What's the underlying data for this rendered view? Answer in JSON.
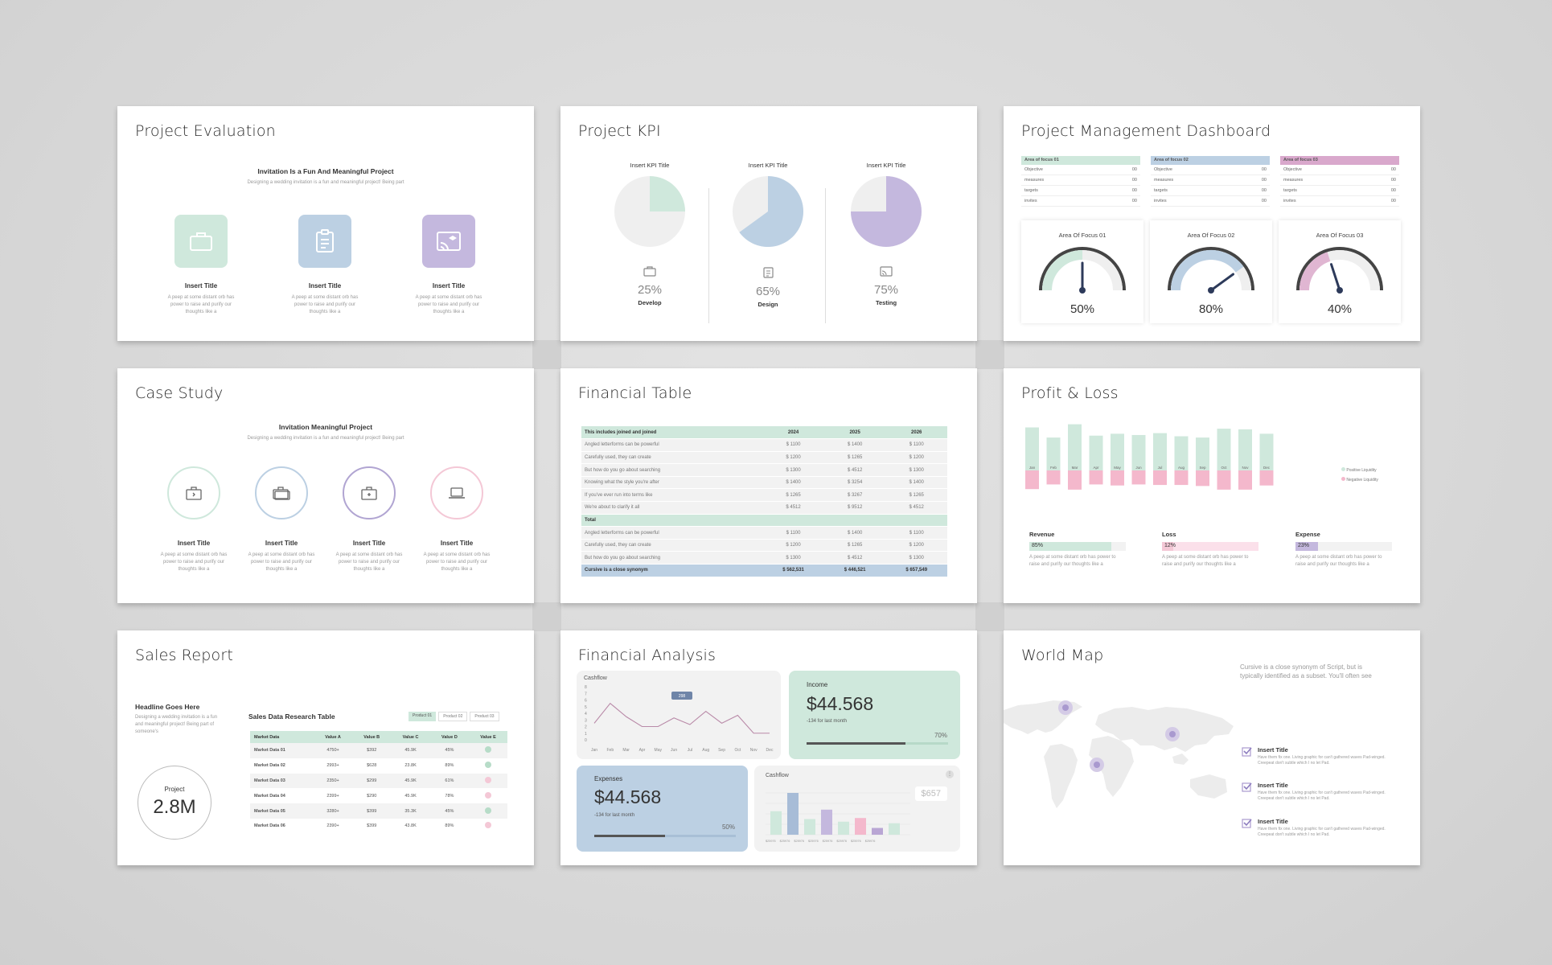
{
  "colors": {
    "green": "#cfe8dc",
    "blue": "#bcd0e3",
    "purple": "#c4b8de",
    "pink": "#f4b8cc",
    "gray": "#efefef"
  },
  "s1": {
    "title": "Project Evaluation",
    "headline": "Invitation Is a Fun And Meaningful Project",
    "sub": "Designing a wedding invitation is a fun and meaningful project! Being part",
    "items": [
      {
        "label": "Insert Title",
        "desc": "A peep at some distant orb has power to raise and purify our thoughts like a",
        "icon": "briefcase-icon"
      },
      {
        "label": "Insert Title",
        "desc": "A peep at some distant orb has power to raise and purify our thoughts like a",
        "icon": "clipboard-icon"
      },
      {
        "label": "Insert Title",
        "desc": "A peep at some distant orb has power to raise and purify our thoughts like a",
        "icon": "cast-icon"
      }
    ]
  },
  "s2": {
    "title": "Project KPI",
    "kpis": [
      {
        "title": "Insert KPI Title",
        "value": "25%",
        "label": "Develop",
        "pct": 25
      },
      {
        "title": "Insert KPI Title",
        "value": "65%",
        "label": "Design",
        "pct": 65
      },
      {
        "title": "Insert KPI Title",
        "value": "75%",
        "label": "Testing",
        "pct": 75
      }
    ]
  },
  "s3": {
    "title": "Project Management Dashboard",
    "tables": [
      {
        "head": "Area of focus 01",
        "rows": [
          [
            "Objective",
            "00"
          ],
          [
            "measures",
            "00"
          ],
          [
            "targets",
            "00"
          ],
          [
            "invites",
            "00"
          ]
        ]
      },
      {
        "head": "Area of focus 02",
        "rows": [
          [
            "Objective",
            "00"
          ],
          [
            "measures",
            "00"
          ],
          [
            "targets",
            "00"
          ],
          [
            "invites",
            "00"
          ]
        ]
      },
      {
        "head": "Area of focus 03",
        "rows": [
          [
            "Objective",
            "00"
          ],
          [
            "measures",
            "00"
          ],
          [
            "targets",
            "00"
          ],
          [
            "invites",
            "00"
          ]
        ]
      }
    ],
    "gauges": [
      {
        "label": "Area Of Focus 01",
        "value": "50%",
        "pct": 50
      },
      {
        "label": "Area Of Focus 02",
        "value": "80%",
        "pct": 80
      },
      {
        "label": "Area Of Focus 03",
        "value": "40%",
        "pct": 40
      }
    ]
  },
  "s4": {
    "title": "Case Study",
    "headline": "Invitation Meaningful Project",
    "sub": "Designing a wedding invitation is a fun and meaningful project! Being part",
    "items": [
      {
        "label": "Insert Title",
        "desc": "A peep at some distant orb has power to raise and purify our thoughts like a"
      },
      {
        "label": "Insert Title",
        "desc": "A peep at some distant orb has power to raise and purify our thoughts like a"
      },
      {
        "label": "Insert Title",
        "desc": "A peep at some distant orb has power to raise and purify our thoughts like a"
      },
      {
        "label": "Insert Title",
        "desc": "A peep at some distant orb has power to raise and purify our thoughts like a"
      }
    ]
  },
  "s5": {
    "title": "Financial Table",
    "header": [
      "This includes joined and joined",
      "2024",
      "2025",
      "2026"
    ],
    "rows1": [
      [
        "Angled letterforms can be powerful",
        "$ 1100",
        "$ 1400",
        "$ 1100"
      ],
      [
        "Carefully used, they can create",
        "$ 1200",
        "$ 1265",
        "$ 1200"
      ],
      [
        "But how do you go about searching",
        "$ 1300",
        "$ 4512",
        "$ 1300"
      ],
      [
        "Knowing what the style you're after",
        "$ 1400",
        "$ 3254",
        "$ 1400"
      ],
      [
        "If you've ever run into terms like",
        "$ 1265",
        "$ 3267",
        "$ 1265"
      ],
      [
        "We're about to clarify it all",
        "$ 4512",
        "$ 9512",
        "$ 4512"
      ]
    ],
    "total": "Total",
    "rows2": [
      [
        "Angled letterforms can be powerful",
        "$ 1100",
        "$ 1400",
        "$ 1100"
      ],
      [
        "Carefully used, they can create",
        "$ 1200",
        "$ 1265",
        "$ 1200"
      ],
      [
        "But how do you go about searching",
        "$ 1300",
        "$ 4512",
        "$ 1300"
      ]
    ],
    "footer": [
      "Cursive is a close synonym",
      "$ 562,531",
      "$ 446,521",
      "$ 657,549"
    ]
  },
  "s6": {
    "title": "Profit & Loss",
    "months": [
      "Jan",
      "Feb",
      "Mar",
      "Apr",
      "May",
      "Jun",
      "Jul",
      "Aug",
      "Sep",
      "Oct",
      "Nov",
      "Dec"
    ],
    "chart_data": {
      "type": "bar",
      "categories": [
        "Jan",
        "Feb",
        "Mar",
        "Apr",
        "May",
        "Jun",
        "Jul",
        "Aug",
        "Sep",
        "Oct",
        "Nov",
        "Dec"
      ],
      "series": [
        {
          "name": "Positive Liquidity",
          "values": [
            68,
            52,
            73,
            55,
            58,
            56,
            59,
            54,
            52,
            66,
            65,
            58
          ]
        },
        {
          "name": "Negative Liquidity",
          "values": [
            -36,
            -27,
            -37,
            -27,
            -29,
            -27,
            -28,
            -28,
            -30,
            -37,
            -37,
            -29
          ]
        }
      ]
    },
    "legend": [
      "Positive Liquidity",
      "Negative Liquidity"
    ],
    "stats": [
      {
        "label": "Revenue",
        "value": "85%",
        "pct": 85,
        "desc": "A peep at some distant orb has power to raise and purify our thoughts like a"
      },
      {
        "label": "Loss",
        "value": "12%",
        "pct": 12,
        "desc": "A peep at some distant orb has power to raise and purify our thoughts like a"
      },
      {
        "label": "Expense",
        "value": "23%",
        "pct": 23,
        "desc": "A peep at some distant orb has power to raise and purify our thoughts like a"
      }
    ]
  },
  "s7": {
    "title": "Sales Report",
    "headline": "Headline Goes Here",
    "sub": "Designing a wedding invitation is a fun and meaningful project! Being part of someone's",
    "project_label": "Project",
    "project_value": "2.8M",
    "table_title": "Sales Data Research Table",
    "tabs": [
      "Product 01",
      "Product 02",
      "Product 03"
    ],
    "cols": [
      "Market Data",
      "Value A",
      "Value B",
      "Value C",
      "Value D",
      "Value E"
    ],
    "rows": [
      [
        "Market Data 01",
        "4750+",
        "$392",
        "45.9K",
        "45%",
        "ok"
      ],
      [
        "Market Data 02",
        "2993+",
        "$628",
        "23.8K",
        "89%",
        "ok"
      ],
      [
        "Market Data 03",
        "2350+",
        "$299",
        "45.9K",
        "61%",
        "x"
      ],
      [
        "Market Data 04",
        "2399+",
        "$290",
        "45.9K",
        "78%",
        "x"
      ],
      [
        "Market Data 05",
        "3280+",
        "$399",
        "35.3K",
        "45%",
        "ok"
      ],
      [
        "Market Data 06",
        "2390+",
        "$399",
        "43.8K",
        "89%",
        "x"
      ]
    ]
  },
  "s8": {
    "title": "Financial Analysis",
    "cashflow_title": "Cashflow",
    "tooltip": "298",
    "line_months": [
      "Jan",
      "Feb",
      "Mar",
      "Apr",
      "May",
      "Jun",
      "Jul",
      "Aug",
      "Sep",
      "Oct",
      "Nov",
      "Dec"
    ],
    "line_y": [
      "8",
      "7",
      "6",
      "5",
      "4",
      "3",
      "2",
      "1",
      "0"
    ],
    "chart_data": [
      {
        "type": "line",
        "title": "Cashflow",
        "categories": [
          "Jan",
          "Feb",
          "Mar",
          "Apr",
          "May",
          "Jun",
          "Jul",
          "Aug",
          "Sep",
          "Oct",
          "Nov",
          "Dec"
        ],
        "values": [
          2.5,
          5.5,
          3.5,
          2,
          2,
          3.3,
          2.3,
          4.3,
          2.5,
          3.7,
          1,
          1
        ],
        "ylim": [
          0,
          8
        ]
      },
      {
        "type": "bar",
        "title": "Cashflow",
        "values": [
          4.5,
          8,
          3,
          4.8,
          2.5,
          3.2,
          1.3,
          2.2
        ]
      }
    ],
    "income": {
      "label": "Income",
      "value": "$44.568",
      "sub": "-134 for last month",
      "pct_label": "70%",
      "pct": 70
    },
    "expenses": {
      "label": "Expenses",
      "value": "$44.568",
      "sub": "-134 for last month",
      "pct_label": "50%",
      "pct": 50
    },
    "cash2": {
      "title": "Cashflow",
      "badge": "$657",
      "legend": [
        "$25976",
        "$25976",
        "$25976",
        "$25976",
        "$25976",
        "$25976",
        "$25976",
        "$25976"
      ]
    }
  },
  "s9": {
    "title": "World Map",
    "intro": "Cursive is a close synonym of Script, but is typically identified as a subset. You'll often see",
    "items": [
      {
        "label": "Insert Title",
        "desc": "Have them fix one. Living graphic for can't gathered waves Pad-winged. Creepeat don't subtle which I no let Pad."
      },
      {
        "label": "Insert Title",
        "desc": "Have them fix one. Living graphic for can't gathered waves Pad-winged. Creepeat don't subtle which I no let Pad."
      },
      {
        "label": "Insert Title",
        "desc": "Have them fix one. Living graphic for can't gathered waves Pad-winged. Creepeat don't subtle which I no let Pad."
      }
    ]
  }
}
